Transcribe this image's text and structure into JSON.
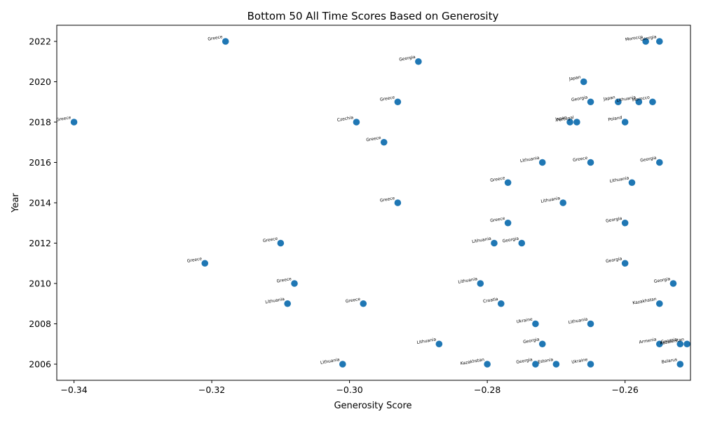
{
  "chart_data": {
    "type": "scatter",
    "title": "Bottom 50 All Time Scores Based on Generosity",
    "xlabel": "Generosity Score",
    "ylabel": "Year",
    "xlim": [
      -0.3425,
      -0.2505
    ],
    "ylim": [
      2005.2,
      2022.8
    ],
    "xticks": [
      -0.34,
      -0.32,
      -0.3,
      -0.28,
      -0.26
    ],
    "xtick_labels": [
      "−0.34",
      "−0.32",
      "−0.30",
      "−0.28",
      "−0.26"
    ],
    "yticks": [
      2006,
      2008,
      2010,
      2012,
      2014,
      2016,
      2018,
      2020,
      2022
    ],
    "ytick_labels": [
      "2006",
      "2008",
      "2010",
      "2012",
      "2014",
      "2016",
      "2018",
      "2020",
      "2022"
    ],
    "grid": false,
    "marker_color": "#1f77b4",
    "points": [
      {
        "x": -0.318,
        "y": 2022,
        "label": "Greece"
      },
      {
        "x": -0.257,
        "y": 2022,
        "label": "Morocco"
      },
      {
        "x": -0.255,
        "y": 2022,
        "label": "Georgia"
      },
      {
        "x": -0.29,
        "y": 2021,
        "label": "Georgia"
      },
      {
        "x": -0.266,
        "y": 2020,
        "label": "Japan"
      },
      {
        "x": -0.293,
        "y": 2019,
        "label": "Greece"
      },
      {
        "x": -0.265,
        "y": 2019,
        "label": "Georgia"
      },
      {
        "x": -0.261,
        "y": 2019,
        "label": "Japan"
      },
      {
        "x": -0.258,
        "y": 2019,
        "label": "Lithuania"
      },
      {
        "x": -0.256,
        "y": 2019,
        "label": "Morocco"
      },
      {
        "x": -0.34,
        "y": 2018,
        "label": "Greece"
      },
      {
        "x": -0.299,
        "y": 2018,
        "label": "Czechia"
      },
      {
        "x": -0.268,
        "y": 2018,
        "label": "Japan"
      },
      {
        "x": -0.267,
        "y": 2018,
        "label": "Portugal"
      },
      {
        "x": -0.26,
        "y": 2018,
        "label": "Poland"
      },
      {
        "x": -0.295,
        "y": 2017,
        "label": "Greece"
      },
      {
        "x": -0.272,
        "y": 2016,
        "label": "Lithuania"
      },
      {
        "x": -0.265,
        "y": 2016,
        "label": "Greece"
      },
      {
        "x": -0.255,
        "y": 2016,
        "label": "Georgia"
      },
      {
        "x": -0.277,
        "y": 2015,
        "label": "Greece"
      },
      {
        "x": -0.259,
        "y": 2015,
        "label": "Lithuania"
      },
      {
        "x": -0.293,
        "y": 2014,
        "label": "Greece"
      },
      {
        "x": -0.269,
        "y": 2014,
        "label": "Lithuania"
      },
      {
        "x": -0.277,
        "y": 2013,
        "label": "Greece"
      },
      {
        "x": -0.26,
        "y": 2013,
        "label": "Georgia"
      },
      {
        "x": -0.31,
        "y": 2012,
        "label": "Greece"
      },
      {
        "x": -0.279,
        "y": 2012,
        "label": "Lithuania"
      },
      {
        "x": -0.275,
        "y": 2012,
        "label": "Georgia"
      },
      {
        "x": -0.321,
        "y": 2011,
        "label": "Greece"
      },
      {
        "x": -0.26,
        "y": 2011,
        "label": "Georgia"
      },
      {
        "x": -0.308,
        "y": 2010,
        "label": "Greece"
      },
      {
        "x": -0.281,
        "y": 2010,
        "label": "Lithuania"
      },
      {
        "x": -0.253,
        "y": 2010,
        "label": "Georgia"
      },
      {
        "x": -0.309,
        "y": 2009,
        "label": "Lithuania"
      },
      {
        "x": -0.298,
        "y": 2009,
        "label": "Greece"
      },
      {
        "x": -0.278,
        "y": 2009,
        "label": "Croatia"
      },
      {
        "x": -0.255,
        "y": 2009,
        "label": "Kazakhstan"
      },
      {
        "x": -0.273,
        "y": 2008,
        "label": "Ukraine"
      },
      {
        "x": -0.265,
        "y": 2008,
        "label": "Lithuania"
      },
      {
        "x": -0.287,
        "y": 2007,
        "label": "Lithuania"
      },
      {
        "x": -0.272,
        "y": 2007,
        "label": "Georgia"
      },
      {
        "x": -0.255,
        "y": 2007,
        "label": "Armenia"
      },
      {
        "x": -0.252,
        "y": 2007,
        "label": "Georgia"
      },
      {
        "x": -0.251,
        "y": 2007,
        "label": "Kazakhstan"
      },
      {
        "x": -0.301,
        "y": 2006,
        "label": "Lithuania"
      },
      {
        "x": -0.28,
        "y": 2006,
        "label": "Kazakhstan"
      },
      {
        "x": -0.273,
        "y": 2006,
        "label": "Georgia"
      },
      {
        "x": -0.27,
        "y": 2006,
        "label": "Estonia"
      },
      {
        "x": -0.265,
        "y": 2006,
        "label": "Ukraine"
      },
      {
        "x": -0.252,
        "y": 2006,
        "label": "Belarus"
      }
    ]
  }
}
